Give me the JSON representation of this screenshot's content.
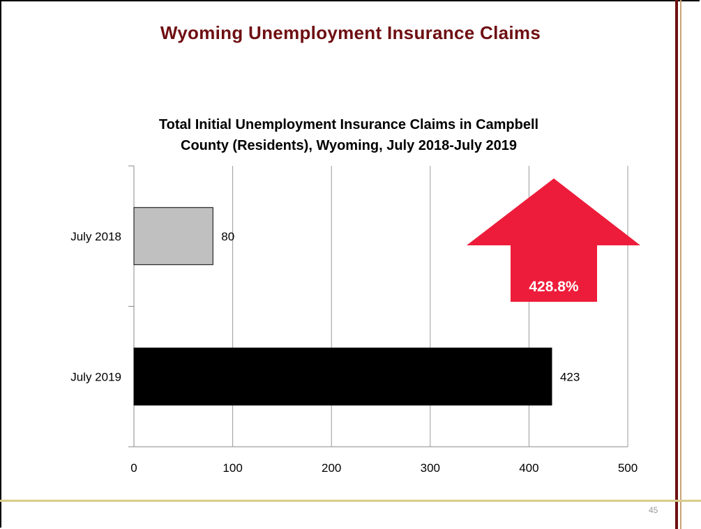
{
  "slide": {
    "title": "Wyoming Unemployment Insurance Claims",
    "page_number": "45",
    "colors": {
      "title": "#6e0f12",
      "right_bar": "#6e0f12",
      "right_bar_light": "#c9a27a",
      "bottom_line": "#d8cc8a"
    }
  },
  "chart_data": {
    "type": "bar",
    "orientation": "horizontal",
    "title": "Total Initial Unemployment Insurance Claims in Campbell County (Residents), Wyoming, July 2018-July 2019",
    "title_lines": [
      "Total Initial Unemployment Insurance Claims in Campbell",
      "County (Residents), Wyoming, July 2018-July 2019"
    ],
    "categories": [
      "July 2018",
      "July 2019"
    ],
    "values": [
      80,
      423
    ],
    "data_labels": [
      "80",
      "423"
    ],
    "bar_colors": [
      "#c0c0c0",
      "#000000"
    ],
    "xlim": [
      0,
      500
    ],
    "x_ticks": [
      0,
      100,
      200,
      300,
      400,
      500
    ],
    "grid": true,
    "annotation": {
      "text": "428.8%",
      "shape": "up-arrow",
      "color": "#ed1c3a"
    }
  }
}
